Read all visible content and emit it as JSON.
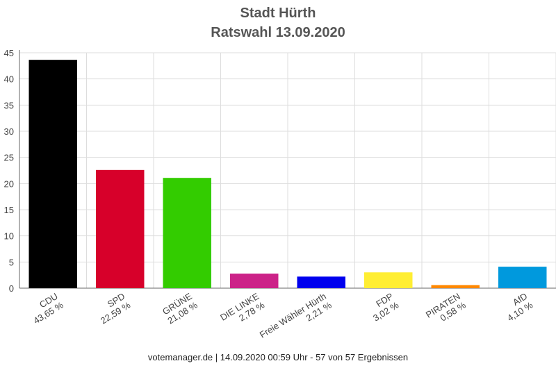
{
  "chart_data": {
    "type": "bar",
    "title": "Stadt Hürth",
    "subtitle": "Ratswahl 13.09.2020",
    "categories": [
      "CDU",
      "SPD",
      "GRÜNE",
      "DIE LINKE",
      "Freie Wähler Hürth",
      "FDP",
      "PIRATEN",
      "AfD"
    ],
    "values": [
      43.65,
      22.59,
      21.08,
      2.78,
      2.21,
      3.02,
      0.58,
      4.1
    ],
    "value_labels": [
      "43,65 %",
      "22,59 %",
      "21,08 %",
      "2,78 %",
      "2,21 %",
      "3,02 %",
      "0,58 %",
      "4,10 %"
    ],
    "colors": [
      "#000000",
      "#d7002a",
      "#33cc00",
      "#cc2288",
      "#0000ee",
      "#ffee33",
      "#ff8800",
      "#0099dd"
    ],
    "ylim": [
      0,
      45
    ],
    "yticks": [
      0,
      5,
      10,
      15,
      20,
      25,
      30,
      35,
      40,
      45
    ],
    "grid": true,
    "xlabel": "",
    "ylabel": ""
  },
  "footer": "votemanager.de | 14.09.2020 00:59 Uhr - 57 von 57 Ergebnissen"
}
